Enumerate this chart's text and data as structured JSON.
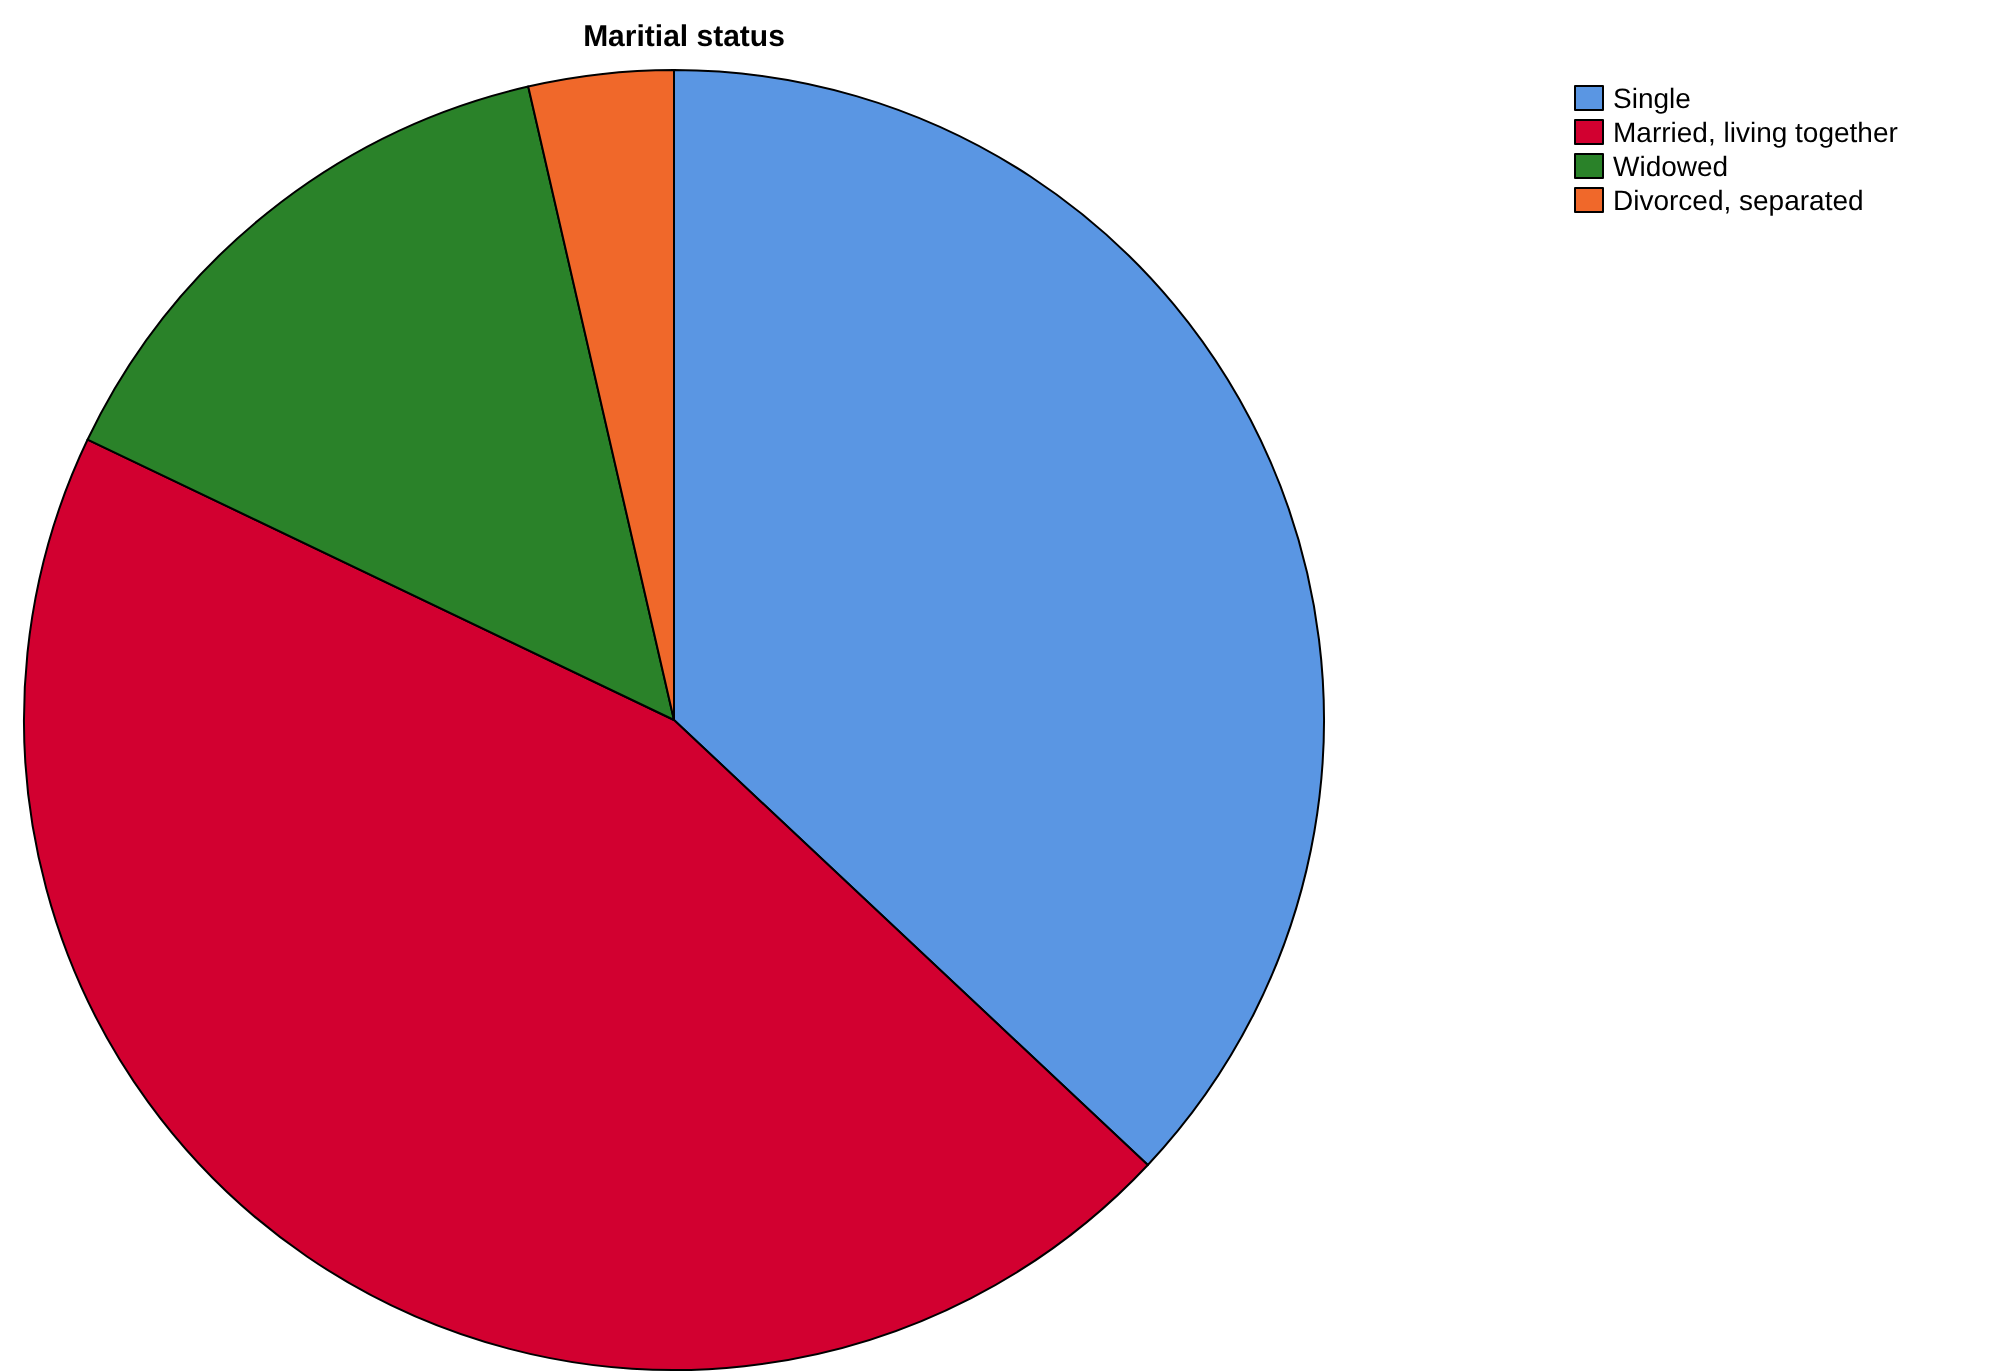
{
  "chart_data": {
    "type": "pie",
    "title": "Maritial status",
    "categories": [
      "Single",
      "Married, living together",
      "Widowed",
      "Divorced, separated"
    ],
    "values": [
      37.0,
      45.1,
      14.3,
      3.6
    ],
    "colors": [
      "#5a96e3",
      "#d20030",
      "#2a8229",
      "#f0682a"
    ],
    "legend": "top right"
  }
}
